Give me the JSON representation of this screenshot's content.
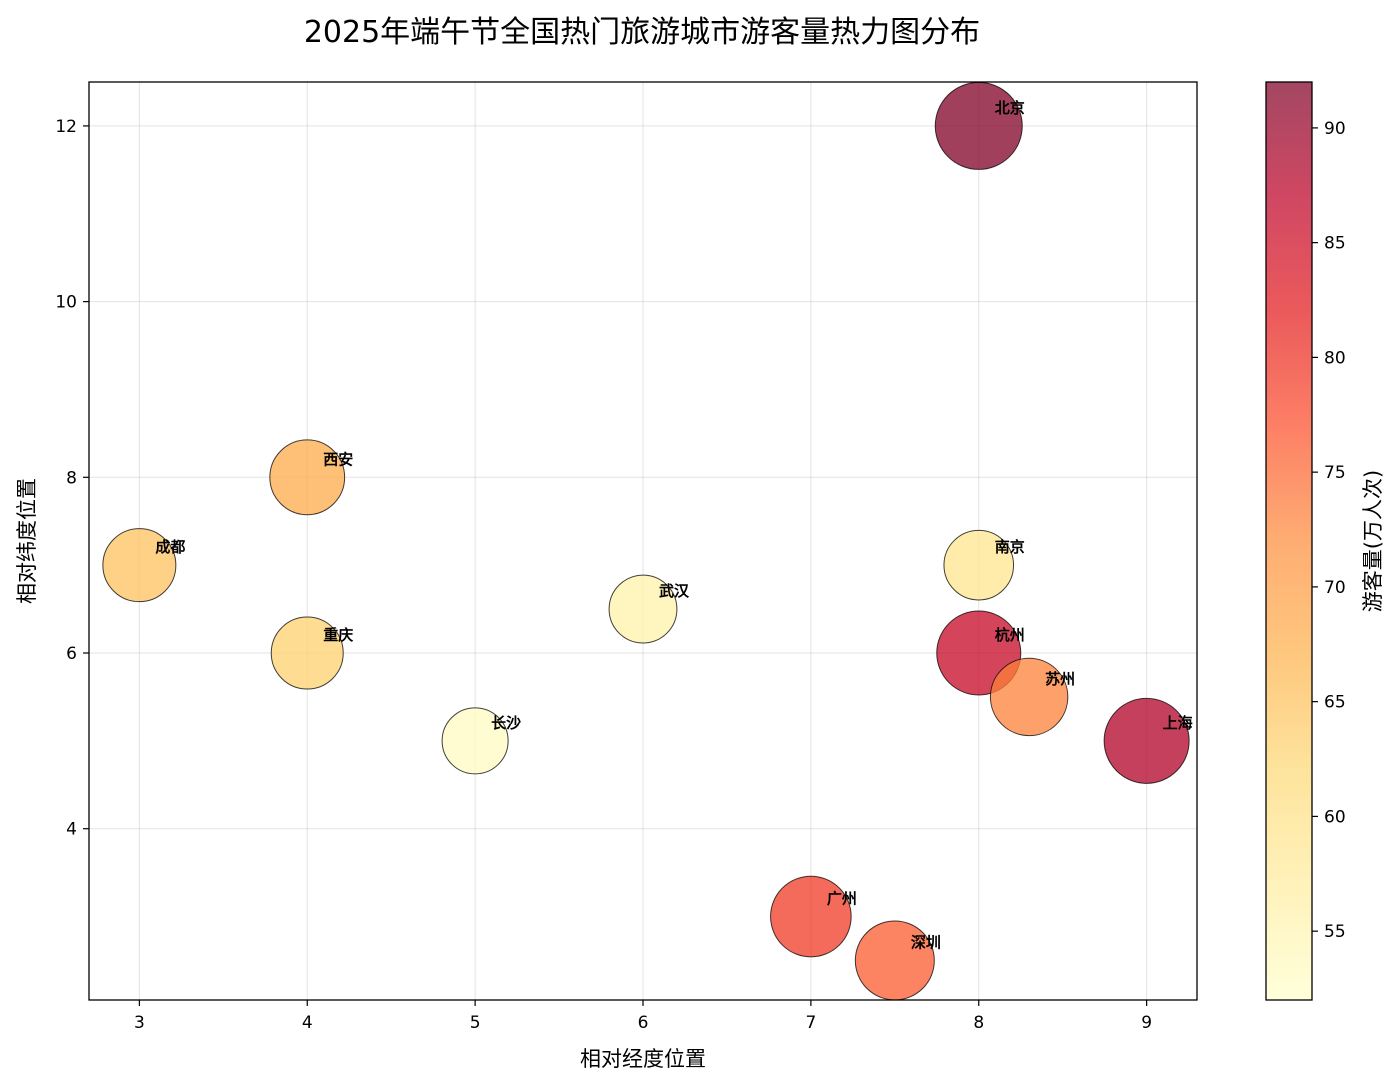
{
  "chart_data": {
    "type": "scatter",
    "title": "2025年端午节全国热门旅游城市游客量热力图分布",
    "xlabel": "相对经度位置",
    "ylabel": "相对纬度位置",
    "xlim": [
      2.7,
      9.3
    ],
    "ylim": [
      2.05,
      12.5
    ],
    "xticks": [
      "3",
      "4",
      "5",
      "6",
      "7",
      "8",
      "9"
    ],
    "yticks": [
      "4",
      "6",
      "8",
      "10",
      "12"
    ],
    "grid": true,
    "colormap": "YlOrRd",
    "colorbar": {
      "label": "游客量(万人次)",
      "range": [
        52,
        92
      ],
      "ticks": [
        "55",
        "60",
        "65",
        "70",
        "75",
        "80",
        "85",
        "90"
      ]
    },
    "points": [
      {
        "label": "北京",
        "x": 8,
        "y": 12,
        "value": 92
      },
      {
        "label": "上海",
        "x": 9,
        "y": 5,
        "value": 88
      },
      {
        "label": "杭州",
        "x": 8,
        "y": 6,
        "value": 86
      },
      {
        "label": "广州",
        "x": 7,
        "y": 3,
        "value": 79
      },
      {
        "label": "深圳",
        "x": 7.5,
        "y": 2.5,
        "value": 76
      },
      {
        "label": "苏州",
        "x": 8.3,
        "y": 5.5,
        "value": 73
      },
      {
        "label": "西安",
        "x": 4,
        "y": 8,
        "value": 68
      },
      {
        "label": "成都",
        "x": 3,
        "y": 7,
        "value": 65
      },
      {
        "label": "重庆",
        "x": 4,
        "y": 6,
        "value": 63
      },
      {
        "label": "南京",
        "x": 8,
        "y": 7,
        "value": 59
      },
      {
        "label": "武汉",
        "x": 6,
        "y": 6.5,
        "value": 56
      },
      {
        "label": "长沙",
        "x": 5,
        "y": 5,
        "value": 53
      }
    ]
  }
}
